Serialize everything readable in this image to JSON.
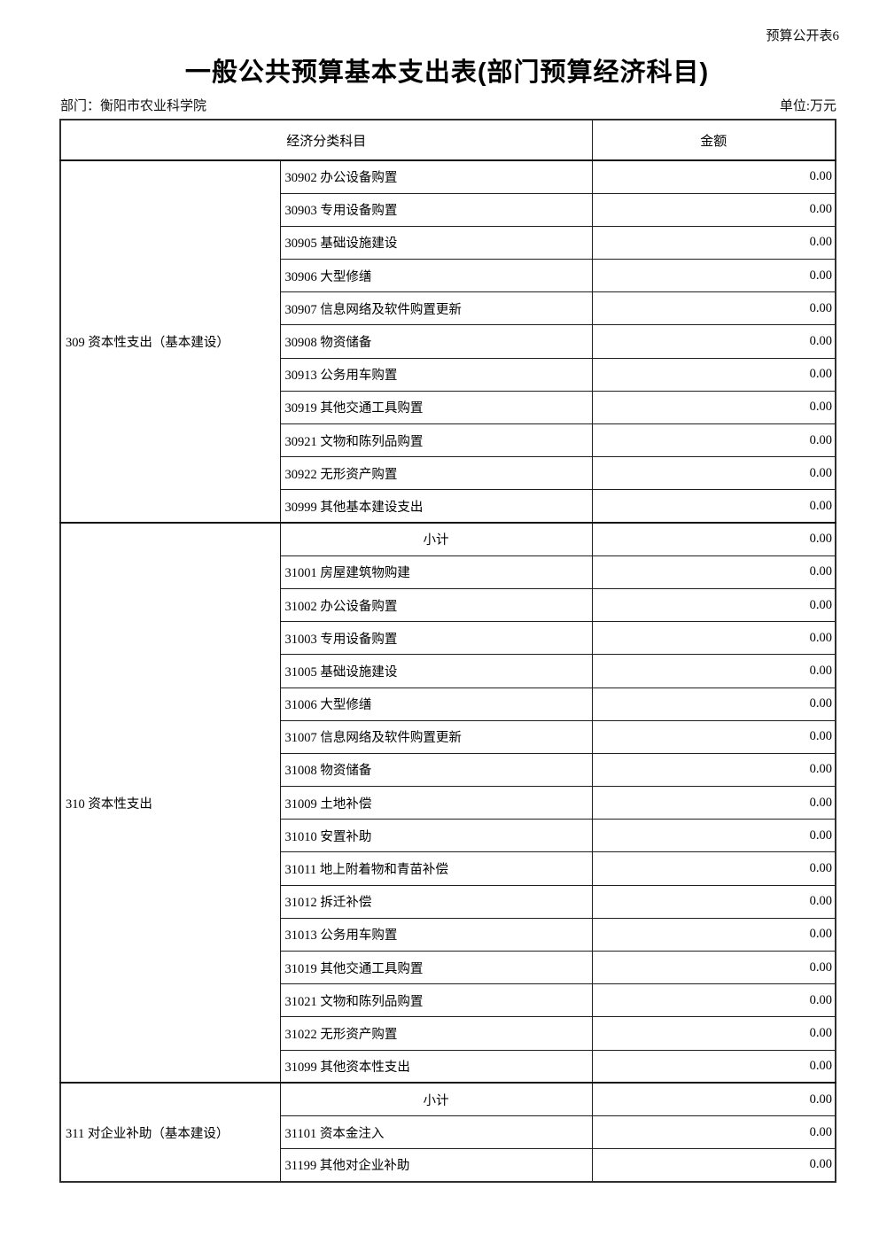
{
  "page": {
    "doc_label": "预算公开表6",
    "title": "一般公共预算基本支出表(部门预算经济科目)",
    "department_label": "部门：衡阳市农业科学院",
    "unit_label": "单位:万元"
  },
  "table": {
    "header": {
      "col_subject": "经济分类科目",
      "col_amount": "金额"
    },
    "sections": [
      {
        "group": "309 资本性支出（基本建设）",
        "rows": [
          {
            "label": "30902 办公设备购置",
            "amount": "0.00"
          },
          {
            "label": "30903 专用设备购置",
            "amount": "0.00"
          },
          {
            "label": "30905 基础设施建设",
            "amount": "0.00"
          },
          {
            "label": "30906 大型修缮",
            "amount": "0.00"
          },
          {
            "label": "30907 信息网络及软件购置更新",
            "amount": "0.00"
          },
          {
            "label": "30908 物资储备",
            "amount": "0.00"
          },
          {
            "label": "30913 公务用车购置",
            "amount": "0.00"
          },
          {
            "label": "30919 其他交通工具购置",
            "amount": "0.00"
          },
          {
            "label": "30921 文物和陈列品购置",
            "amount": "0.00"
          },
          {
            "label": "30922 无形资产购置",
            "amount": "0.00"
          },
          {
            "label": "30999 其他基本建设支出",
            "amount": "0.00"
          }
        ]
      },
      {
        "group": "310 资本性支出",
        "rows": [
          {
            "label": "小计",
            "amount": "0.00",
            "subtotal": true
          },
          {
            "label": "31001 房屋建筑物购建",
            "amount": "0.00"
          },
          {
            "label": "31002 办公设备购置",
            "amount": "0.00"
          },
          {
            "label": "31003 专用设备购置",
            "amount": "0.00"
          },
          {
            "label": "31005 基础设施建设",
            "amount": "0.00"
          },
          {
            "label": "31006 大型修缮",
            "amount": "0.00"
          },
          {
            "label": "31007 信息网络及软件购置更新",
            "amount": "0.00"
          },
          {
            "label": "31008 物资储备",
            "amount": "0.00"
          },
          {
            "label": "31009 土地补偿",
            "amount": "0.00"
          },
          {
            "label": "31010 安置补助",
            "amount": "0.00"
          },
          {
            "label": "31011 地上附着物和青苗补偿",
            "amount": "0.00"
          },
          {
            "label": "31012 拆迁补偿",
            "amount": "0.00"
          },
          {
            "label": "31013 公务用车购置",
            "amount": "0.00"
          },
          {
            "label": "31019 其他交通工具购置",
            "amount": "0.00"
          },
          {
            "label": "31021 文物和陈列品购置",
            "amount": "0.00"
          },
          {
            "label": "31022 无形资产购置",
            "amount": "0.00"
          },
          {
            "label": "31099 其他资本性支出",
            "amount": "0.00"
          }
        ]
      },
      {
        "group": "311 对企业补助（基本建设）",
        "rows": [
          {
            "label": "小计",
            "amount": "0.00",
            "subtotal": true
          },
          {
            "label": "31101 资本金注入",
            "amount": "0.00"
          },
          {
            "label": "31199 其他对企业补助",
            "amount": "0.00"
          }
        ]
      }
    ]
  }
}
